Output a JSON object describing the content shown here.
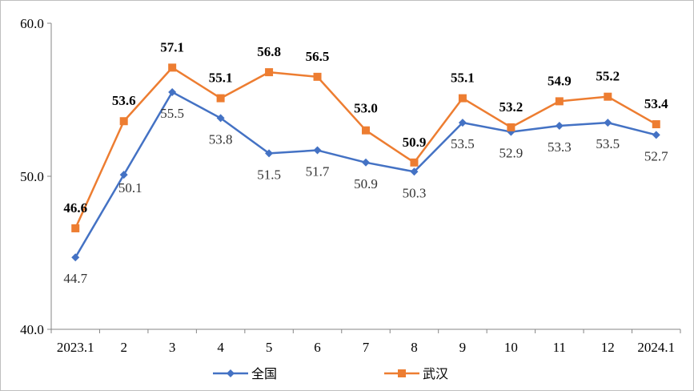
{
  "chart_data": {
    "type": "line",
    "categories": [
      "2023.1",
      "2",
      "3",
      "4",
      "5",
      "6",
      "7",
      "8",
      "9",
      "10",
      "11",
      "12",
      "2024.1"
    ],
    "series": [
      {
        "name": "全国",
        "color": "#4472C4",
        "marker": "diamond",
        "values": [
          44.7,
          50.1,
          55.5,
          53.8,
          51.5,
          51.7,
          50.9,
          50.3,
          53.5,
          52.9,
          53.3,
          53.5,
          52.7
        ],
        "labels": [
          "44.7",
          "50.1",
          "55.5",
          "53.8",
          "51.5",
          "51.7",
          "50.9",
          "50.3",
          "53.5",
          "52.9",
          "53.3",
          "53.5",
          "52.7"
        ]
      },
      {
        "name": "武汉",
        "color": "#ED7D31",
        "marker": "square",
        "values": [
          46.6,
          53.6,
          57.1,
          55.1,
          56.8,
          56.5,
          53.0,
          50.9,
          55.1,
          53.2,
          54.9,
          55.2,
          53.4
        ],
        "labels": [
          "46.6",
          "53.6",
          "57.1",
          "55.1",
          "56.8",
          "56.5",
          "53.0",
          "50.9",
          "55.1",
          "53.2",
          "54.9",
          "55.2",
          "53.4"
        ]
      }
    ],
    "ylim": [
      40,
      60
    ],
    "yticks": [
      "40.0",
      "50.0",
      "60.0"
    ],
    "grid": false,
    "legend": "bottom"
  }
}
